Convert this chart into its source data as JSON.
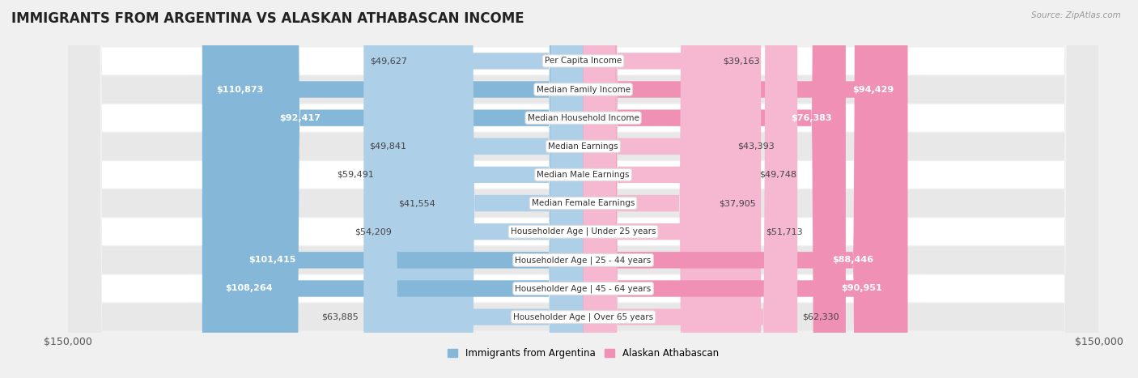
{
  "title": "IMMIGRANTS FROM ARGENTINA VS ALASKAN ATHABASCAN INCOME",
  "source": "Source: ZipAtlas.com",
  "categories": [
    "Per Capita Income",
    "Median Family Income",
    "Median Household Income",
    "Median Earnings",
    "Median Male Earnings",
    "Median Female Earnings",
    "Householder Age | Under 25 years",
    "Householder Age | 25 - 44 years",
    "Householder Age | 45 - 64 years",
    "Householder Age | Over 65 years"
  ],
  "argentina_values": [
    49627,
    110873,
    92417,
    49841,
    59491,
    41554,
    54209,
    101415,
    108264,
    63885
  ],
  "athabascan_values": [
    39163,
    94429,
    76383,
    43393,
    49748,
    37905,
    51713,
    88446,
    90951,
    62330
  ],
  "argentina_color": "#85b8d8",
  "athabascan_color": "#f090b4",
  "argentina_color_light": "#aecfe8",
  "athabascan_color_light": "#f5b8d0",
  "argentina_label": "Immigrants from Argentina",
  "athabascan_label": "Alaskan Athabascan",
  "max_value": 150000,
  "background_color": "#f0f0f0",
  "row_bg_white": "#ffffff",
  "row_bg_gray": "#e8e8e8",
  "title_fontsize": 12,
  "label_fontsize": 8,
  "tick_fontsize": 9,
  "value_threshold": 70000
}
